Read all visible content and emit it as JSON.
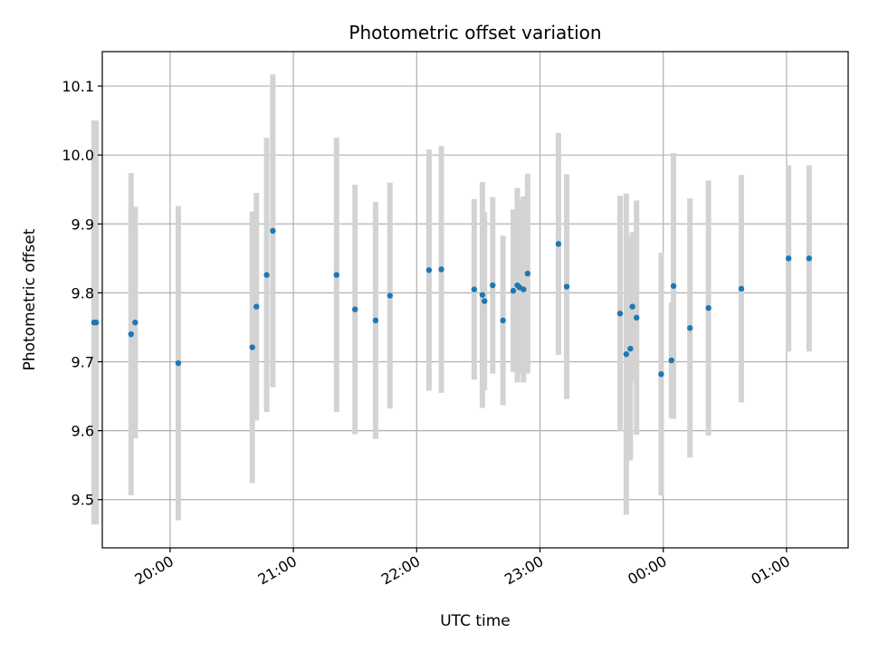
{
  "chart_data": {
    "type": "scatter",
    "title": "Photometric offset variation",
    "xlabel": "UTC time",
    "ylabel": "Photometric offset",
    "x_reference_date": "",
    "xlim": [
      "19:27",
      "01:30"
    ],
    "ylim": [
      9.43,
      10.15
    ],
    "x_ticks": [
      "20:00",
      "21:00",
      "22:00",
      "23:00",
      "00:00",
      "01:00"
    ],
    "y_ticks": [
      9.5,
      9.6,
      9.7,
      9.8,
      9.9,
      10.0,
      10.1
    ],
    "y_tick_labels": [
      "9.5",
      "9.6",
      "9.7",
      "9.8",
      "9.9",
      "10.0",
      "10.1"
    ],
    "grid": true,
    "colors": {
      "point": "#1f77b4",
      "errorbar": "#d3d3d3",
      "grid": "#b0b0b0"
    },
    "points": [
      {
        "time": "19:23",
        "y": 9.757,
        "err": 0.293
      },
      {
        "time": "19:24",
        "y": 9.757,
        "err": 0.293
      },
      {
        "time": "19:41",
        "y": 9.74,
        "err": 0.234
      },
      {
        "time": "19:43",
        "y": 9.757,
        "err": 0.168
      },
      {
        "time": "20:04",
        "y": 9.698,
        "err": 0.228
      },
      {
        "time": "20:40",
        "y": 9.721,
        "err": 0.197
      },
      {
        "time": "20:42",
        "y": 9.78,
        "err": 0.165
      },
      {
        "time": "20:47",
        "y": 9.826,
        "err": 0.199
      },
      {
        "time": "20:50",
        "y": 9.89,
        "err": 0.227
      },
      {
        "time": "21:21",
        "y": 9.826,
        "err": 0.199
      },
      {
        "time": "21:30",
        "y": 9.776,
        "err": 0.181
      },
      {
        "time": "21:40",
        "y": 9.76,
        "err": 0.172
      },
      {
        "time": "21:47",
        "y": 9.796,
        "err": 0.164
      },
      {
        "time": "22:06",
        "y": 9.833,
        "err": 0.175
      },
      {
        "time": "22:12",
        "y": 9.834,
        "err": 0.179
      },
      {
        "time": "22:28",
        "y": 9.805,
        "err": 0.131
      },
      {
        "time": "22:32",
        "y": 9.797,
        "err": 0.164
      },
      {
        "time": "22:33",
        "y": 9.788,
        "err": 0.129
      },
      {
        "time": "22:37",
        "y": 9.811,
        "err": 0.128
      },
      {
        "time": "22:42",
        "y": 9.76,
        "err": 0.123
      },
      {
        "time": "22:47",
        "y": 9.803,
        "err": 0.118
      },
      {
        "time": "22:49",
        "y": 9.811,
        "err": 0.141
      },
      {
        "time": "22:50",
        "y": 9.808,
        "err": 0.126
      },
      {
        "time": "22:52",
        "y": 9.805,
        "err": 0.135
      },
      {
        "time": "22:54",
        "y": 9.828,
        "err": 0.145
      },
      {
        "time": "23:09",
        "y": 9.871,
        "err": 0.161
      },
      {
        "time": "23:13",
        "y": 9.809,
        "err": 0.163
      },
      {
        "time": "23:39",
        "y": 9.77,
        "err": 0.171
      },
      {
        "time": "23:42",
        "y": 9.711,
        "err": 0.233
      },
      {
        "time": "23:44",
        "y": 9.719,
        "err": 0.162
      },
      {
        "time": "23:45",
        "y": 9.78,
        "err": 0.108
      },
      {
        "time": "23:47",
        "y": 9.764,
        "err": 0.17
      },
      {
        "time": "23:59",
        "y": 9.682,
        "err": 0.176
      },
      {
        "time": "00:04",
        "y": 9.702,
        "err": 0.084
      },
      {
        "time": "00:05",
        "y": 9.81,
        "err": 0.193
      },
      {
        "time": "00:13",
        "y": 9.749,
        "err": 0.188
      },
      {
        "time": "00:22",
        "y": 9.778,
        "err": 0.185
      },
      {
        "time": "00:38",
        "y": 9.806,
        "err": 0.165
      },
      {
        "time": "01:01",
        "y": 9.85,
        "err": 0.135
      },
      {
        "time": "01:11",
        "y": 9.85,
        "err": 0.135
      }
    ]
  }
}
